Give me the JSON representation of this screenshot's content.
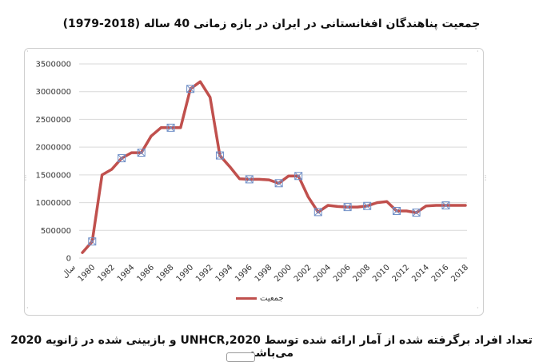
{
  "chart_data": {
    "type": "line",
    "title": "جمعیت پناهندگان افغانستانی در ایران در بازه زمانی 40 ساله (2018-1979)",
    "xlabel": "سال",
    "ylabel": "",
    "ylim": [
      0,
      3500000
    ],
    "yticks": [
      0,
      500000,
      1000000,
      1500000,
      2000000,
      2500000,
      3000000,
      3500000
    ],
    "ytick_labels": [
      "0",
      "500000",
      "1000000",
      "1500000",
      "2000000",
      "2500000",
      "3000000",
      "3500000"
    ],
    "xtick_labels": [
      "سال",
      "1980",
      "1982",
      "1984",
      "1986",
      "1988",
      "1990",
      "1992",
      "1994",
      "1996",
      "1998",
      "2000",
      "2002",
      "2004",
      "2006",
      "2008",
      "2010",
      "2012",
      "2014",
      "2016",
      "2018"
    ],
    "grid": true,
    "legend_position": "bottom",
    "series": [
      {
        "name": "جمعیت",
        "color": "#c0504d",
        "x": [
          1979,
          1980,
          1981,
          1982,
          1983,
          1984,
          1985,
          1986,
          1987,
          1988,
          1989,
          1990,
          1991,
          1992,
          1993,
          1994,
          1995,
          1996,
          1997,
          1998,
          1999,
          2000,
          2001,
          2002,
          2003,
          2004,
          2005,
          2006,
          2007,
          2008,
          2009,
          2010,
          2011,
          2012,
          2013,
          2014,
          2015,
          2016,
          2017,
          2018
        ],
        "values": [
          100000,
          300000,
          1500000,
          1600000,
          1800000,
          1900000,
          1900000,
          2200000,
          2350000,
          2350000,
          2350000,
          3050000,
          3180000,
          2900000,
          1850000,
          1650000,
          1430000,
          1420000,
          1420000,
          1410000,
          1350000,
          1480000,
          1480000,
          1100000,
          830000,
          950000,
          930000,
          920000,
          920000,
          940000,
          1000000,
          1020000,
          850000,
          850000,
          820000,
          940000,
          950000,
          950000,
          950000,
          950000
        ],
        "markers_at": [
          1980,
          1983,
          1985,
          1988,
          1990,
          1993,
          1996,
          1999,
          2001,
          2003,
          2006,
          2008,
          2011,
          2013,
          2016
        ]
      }
    ]
  },
  "caption": "تعداد افراد برگرفته شده از آمار ارائه شده توسط UNHCR,2020 و بازبینی شده در ژانویه 2020 می‌باشد"
}
